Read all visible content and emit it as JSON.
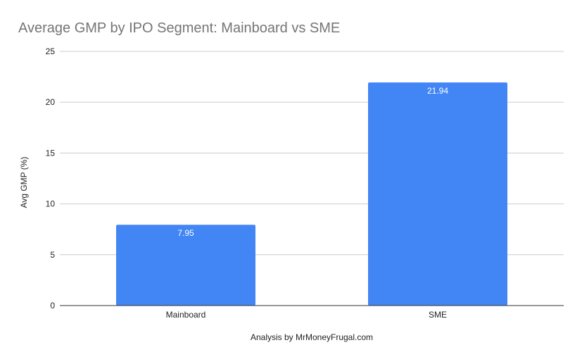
{
  "chart_data": {
    "type": "bar",
    "title": "Average GMP by IPO Segment: Mainboard vs SME",
    "xlabel": "Analysis by MrMoneyFrugal.com",
    "ylabel": "Avg GMP (%)",
    "categories": [
      "Mainboard",
      "SME"
    ],
    "values": [
      7.95,
      21.94
    ],
    "data_labels": [
      "7.95",
      "21.94"
    ],
    "ylim": [
      0,
      25
    ],
    "yticks": [
      0,
      5,
      10,
      15,
      20,
      25
    ],
    "grid": true,
    "legend": "none",
    "colors": {
      "bar": "#4285f4",
      "grid": "#cccccc",
      "axis": "#333333",
      "title": "#757575",
      "text": "#222222",
      "data_label": "#ffffff"
    }
  }
}
